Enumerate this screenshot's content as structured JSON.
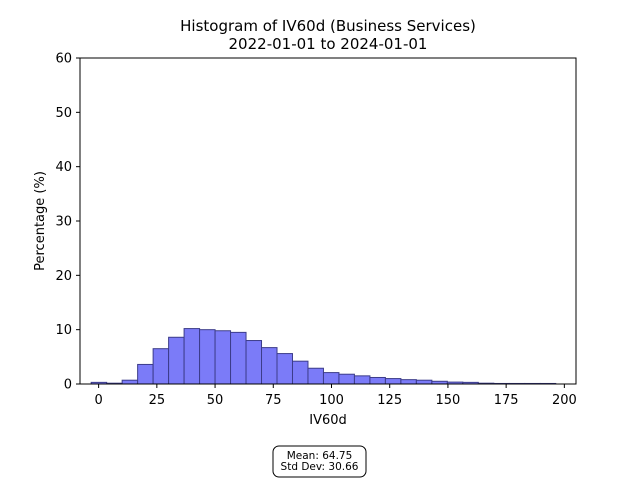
{
  "chart_data": {
    "type": "bar",
    "title": "Histogram of IV60d (Business Services)",
    "subtitle": "2022-01-01 to 2024-01-01",
    "xlabel": "IV60d",
    "ylabel": "Percentage (%)",
    "xlim": [
      -8,
      205
    ],
    "ylim": [
      0,
      60
    ],
    "xticks": [
      0,
      25,
      50,
      75,
      100,
      125,
      150,
      175,
      200
    ],
    "yticks": [
      0,
      10,
      20,
      30,
      40,
      50,
      60
    ],
    "bin_width": 6.65,
    "bin_starts": [
      -3.2,
      3.45,
      10.1,
      16.75,
      23.4,
      30.05,
      36.7,
      43.35,
      50.0,
      56.65,
      63.3,
      69.95,
      76.6,
      83.25,
      89.9,
      96.55,
      103.2,
      109.85,
      116.5,
      123.15,
      129.8,
      136.45,
      143.1,
      149.75,
      156.4,
      163.05,
      169.7,
      176.35,
      183.0,
      189.65
    ],
    "values": [
      0.3,
      0.15,
      0.7,
      3.6,
      6.5,
      8.6,
      10.2,
      10.0,
      9.8,
      9.5,
      8.0,
      6.7,
      5.6,
      4.2,
      2.9,
      2.1,
      1.8,
      1.5,
      1.2,
      1.0,
      0.8,
      0.7,
      0.5,
      0.35,
      0.3,
      0.15,
      0.1,
      0.1,
      0.1,
      0.1
    ],
    "bar_color": "#7b7bf8",
    "edge_color": "#3c3c8a",
    "grid": false,
    "stats": {
      "mean_label": "Mean: 64.75",
      "std_label": "Std Dev: 30.66"
    }
  }
}
